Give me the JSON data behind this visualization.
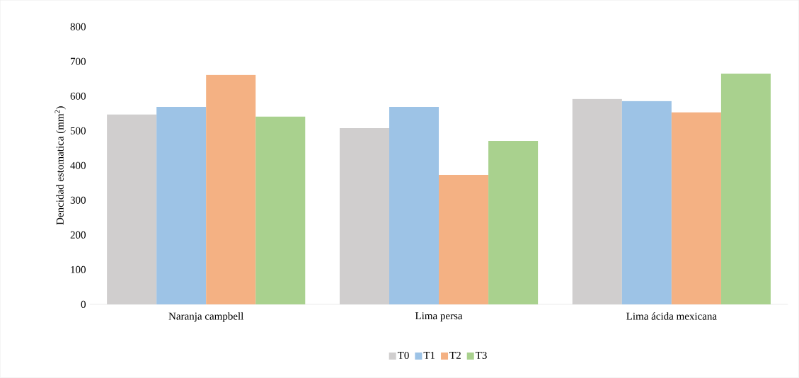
{
  "chart_data": {
    "type": "bar",
    "categories": [
      "Naranja campbell",
      "Lima persa",
      "Lima ácida mexicana"
    ],
    "ylabel": "Dencidad estomatica (mm$^{2}$)",
    "ylim": [
      0,
      800
    ],
    "yticks": [
      0,
      100,
      200,
      300,
      400,
      500,
      600,
      700,
      800
    ],
    "legend": "bottom",
    "series": [
      {
        "name": "T0",
        "color": "#d0cece",
        "values": [
          547,
          508,
          592
        ]
      },
      {
        "name": "T1",
        "color": "#9dc3e6",
        "values": [
          569,
          569,
          586
        ]
      },
      {
        "name": "T2",
        "color": "#f4b183",
        "values": [
          661,
          373,
          553
        ]
      },
      {
        "name": "T3",
        "color": "#a9d18e",
        "values": [
          541,
          471,
          665
        ]
      }
    ]
  }
}
